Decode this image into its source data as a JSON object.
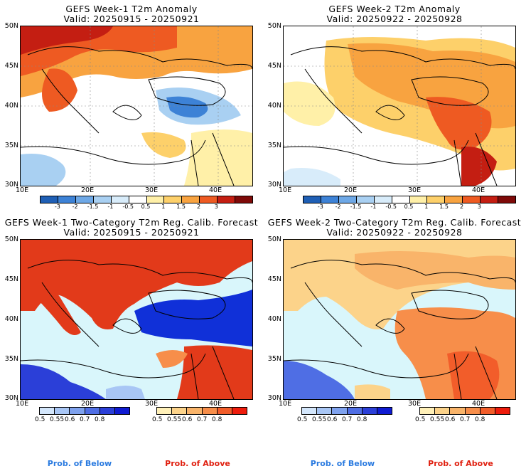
{
  "panels": [
    {
      "title": "GEFS Week-1 T2m Anomaly",
      "subtitle": "Valid: 20250915 - 20250921",
      "ylabels": [
        "50N",
        "45N",
        "40N",
        "35N",
        "30N"
      ],
      "xlabels": [
        "10E",
        "20E",
        "30E",
        "40E"
      ]
    },
    {
      "title": "GEFS Week-2 T2m Anomaly",
      "subtitle": "Valid: 20250922 - 20250928",
      "ylabels": [
        "50N",
        "45N",
        "40N",
        "35N",
        "30N"
      ],
      "xlabels": [
        "10E",
        "20E",
        "30E",
        "40E"
      ]
    },
    {
      "title": "GEFS Week-1 Two-Category T2m Reg. Calib. Forecast",
      "subtitle": "Valid: 20250915 - 20250921",
      "ylabels": [
        "50N",
        "45N",
        "40N",
        "35N",
        "30N"
      ],
      "xlabels": [
        "10E",
        "20E",
        "30E",
        "40E"
      ]
    },
    {
      "title": "GEFS Week-2 Two-Category T2m Reg. Calib. Forecast",
      "subtitle": "Valid: 20250922 - 20250928",
      "ylabels": [
        "50N",
        "45N",
        "40N",
        "35N",
        "30N"
      ],
      "xlabels": [
        "10E",
        "20E",
        "30E",
        "40E"
      ]
    }
  ],
  "anomaly_colorbar": {
    "labels": [
      "-3",
      "-2",
      "-1.5",
      "-1",
      "-0.5",
      "0.5",
      "1",
      "1.5",
      "2",
      "3"
    ],
    "colors": [
      "#1f5fb5",
      "#3d82d6",
      "#6ea8e6",
      "#a9d0f2",
      "#d8ecfa",
      "#ffffff",
      "#fff0a8",
      "#fdd06a",
      "#f8a340",
      "#ee5a22",
      "#c41e12",
      "#7e0a08"
    ]
  },
  "below_colorbar": {
    "labels": [
      "0.5",
      "0.55",
      "0.6",
      "0.7",
      "0.8"
    ],
    "colors": [
      "#d3e6fb",
      "#a8c6f5",
      "#7fa2ee",
      "#4f6ee4",
      "#2b3fd8",
      "#0f1bd2"
    ]
  },
  "above_colorbar": {
    "labels": [
      "0.5",
      "0.55",
      "0.6",
      "0.7",
      "0.8"
    ],
    "colors": [
      "#fff0b8",
      "#fcd38a",
      "#f9b46a",
      "#f78e4a",
      "#f25d2a",
      "#ee1c0c"
    ]
  },
  "legend": {
    "below": "Prob. of Below",
    "above": "Prob. of Above",
    "below_color": "#2b7be0",
    "above_color": "#e02010"
  },
  "map_colors": {
    "sea_fill": "#d9f6fb",
    "land_warm": "#f39a4a",
    "land_hot": "#e23a1a",
    "land_cool": "#fff6c8",
    "blue_area": "#1030d8",
    "coast": "#000000",
    "border": "#000000"
  }
}
